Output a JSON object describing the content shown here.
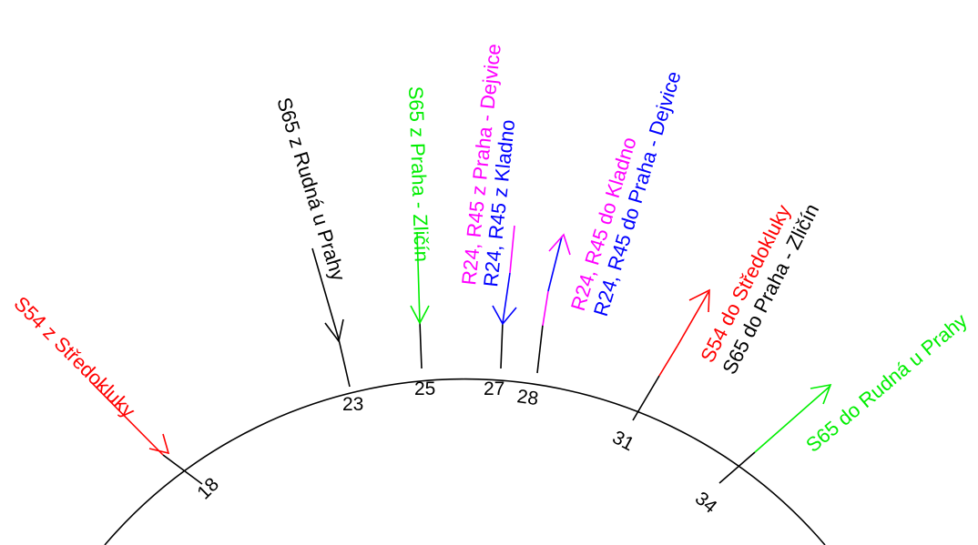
{
  "colors": {
    "black": "#000000",
    "red": "#ff0000",
    "green": "#00ee00",
    "magenta": "#ff00ff",
    "blue": "#0000ff"
  },
  "stops": [
    {
      "id": "18",
      "label": "18"
    },
    {
      "id": "23",
      "label": "23"
    },
    {
      "id": "25",
      "label": "25"
    },
    {
      "id": "27",
      "label": "27"
    },
    {
      "id": "28",
      "label": "28"
    },
    {
      "id": "31",
      "label": "31"
    },
    {
      "id": "34",
      "label": "34"
    }
  ],
  "routes": {
    "s54_from": {
      "label": "S54 z Středokluky",
      "color": "#ff0000"
    },
    "s65_from_rudna": {
      "label": "S65 z Rudná u Prahy",
      "color": "#000000"
    },
    "s65_from_zlicin": {
      "label": "S65 z Praha - Zličín",
      "color": "#00ee00"
    },
    "r24_from_dejvice": {
      "label": "R24, R45 z Praha - Dejvice",
      "color": "#ff00ff"
    },
    "r24_from_kladno": {
      "label": "R24, R45 z Kladno",
      "color": "#0000ff"
    },
    "r24_to_kladno": {
      "label": "R24, R45 do Kladno",
      "color": "#ff00ff"
    },
    "r24_to_dejvice": {
      "label": "R24, R45 do Praha - Dejvice",
      "color": "#0000ff"
    },
    "s54_to": {
      "label": "S54 do Středokluky",
      "color": "#ff0000"
    },
    "s65_to_zlicin": {
      "label": "S65 do Praha - Zličín",
      "color": "#000000"
    },
    "s65_to_rudna": {
      "label": "S65 do Rudná u Prahy",
      "color": "#00ee00"
    }
  }
}
